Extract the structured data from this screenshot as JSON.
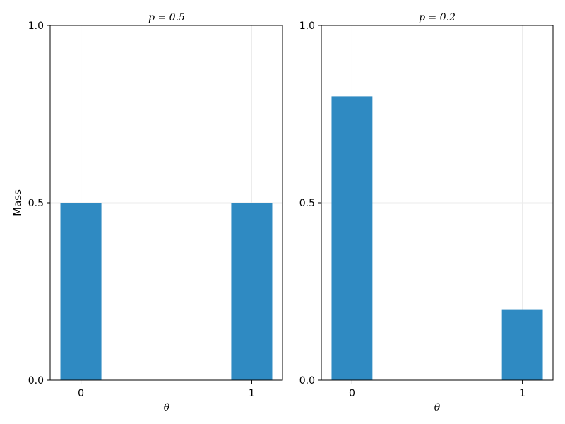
{
  "chart_data": [
    {
      "type": "bar",
      "title": "p = 0.5",
      "xlabel": "θ",
      "ylabel": "Mass",
      "categories": [
        "0",
        "1"
      ],
      "x": [
        0,
        1
      ],
      "values": [
        0.5,
        0.5
      ],
      "ylim": [
        0,
        1
      ],
      "yticks": [
        "0.0",
        "0.5",
        "1.0"
      ],
      "grid": true,
      "color": "#2f8ac2"
    },
    {
      "type": "bar",
      "title": "p = 0.2",
      "xlabel": "θ",
      "ylabel": "",
      "categories": [
        "0",
        "1"
      ],
      "x": [
        0,
        1
      ],
      "values": [
        0.8,
        0.2
      ],
      "ylim": [
        0,
        1
      ],
      "yticks": [
        "0.0",
        "0.5",
        "1.0"
      ],
      "grid": true,
      "color": "#2f8ac2"
    }
  ]
}
